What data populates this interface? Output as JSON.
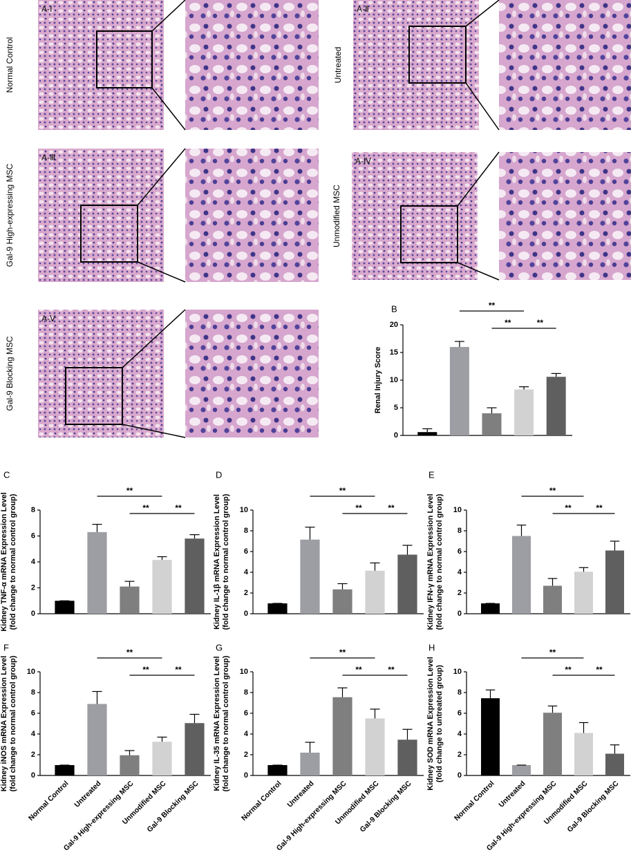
{
  "histology": [
    {
      "label": "A-Ⅰ",
      "group": "Normal Control"
    },
    {
      "label": "A-Ⅱ",
      "group": "Untreated"
    },
    {
      "label": "A-Ⅲ",
      "group": "Gal-9 High-expressing MSC"
    },
    {
      "label": "A-Ⅳ",
      "group": "Unmodified MSC"
    },
    {
      "label": "A-Ⅴ",
      "group": "Gal-9 Blocking MSC"
    }
  ],
  "chart_data": [
    {
      "type": "bar",
      "panel": "B",
      "y_label": [
        "Renal Injury Score"
      ],
      "values": [
        0.6,
        16,
        4,
        8.3,
        10.6
      ],
      "errors": [
        0.6,
        1.0,
        1.0,
        0.5,
        0.6
      ],
      "colors": [
        "#000000",
        "#9d9ea3",
        "#7f7f7f",
        "#d2d2d2",
        "#5f5f5f"
      ],
      "ylim": [
        0,
        20
      ],
      "yticks": [
        0,
        5,
        10,
        15,
        20
      ],
      "significance": [
        {
          "from": 1,
          "to": 3,
          "label": "**"
        },
        {
          "from": 2,
          "to": 3,
          "label": "**"
        },
        {
          "from": 3,
          "to": 4,
          "label": "**"
        }
      ]
    },
    {
      "type": "bar",
      "panel": "C",
      "y_label": [
        "Kidney TNF-α mRNA Expression Level",
        "(fold change to normal control group)"
      ],
      "values": [
        1,
        6.3,
        2.1,
        4.15,
        5.8
      ],
      "errors": [
        0,
        0.6,
        0.4,
        0.25,
        0.3
      ],
      "colors": [
        "#000000",
        "#9d9ea3",
        "#7f7f7f",
        "#d2d2d2",
        "#5f5f5f"
      ],
      "ylim": [
        0,
        8
      ],
      "yticks": [
        0,
        2,
        4,
        6,
        8
      ],
      "significance": [
        {
          "from": 1,
          "to": 3,
          "label": "**"
        },
        {
          "from": 2,
          "to": 3,
          "label": "**"
        },
        {
          "from": 3,
          "to": 4,
          "label": "**"
        }
      ]
    },
    {
      "type": "bar",
      "panel": "D",
      "y_label": [
        "Kidney IL-1β mRNA Expression Level",
        "(fold change to normal control group)"
      ],
      "values": [
        1,
        7.15,
        2.35,
        4.15,
        5.7
      ],
      "errors": [
        0,
        1.2,
        0.55,
        0.75,
        0.9
      ],
      "colors": [
        "#000000",
        "#9d9ea3",
        "#7f7f7f",
        "#d2d2d2",
        "#5f5f5f"
      ],
      "ylim": [
        0,
        10
      ],
      "yticks": [
        0,
        2,
        4,
        6,
        8,
        10
      ],
      "significance": [
        {
          "from": 1,
          "to": 3,
          "label": "**"
        },
        {
          "from": 2,
          "to": 3,
          "label": "**"
        },
        {
          "from": 3,
          "to": 4,
          "label": "**"
        }
      ]
    },
    {
      "type": "bar",
      "panel": "E",
      "y_label": [
        "Kidney IFN-γ mRNA Expression Level",
        "(fold change to normal control group)"
      ],
      "values": [
        1,
        7.5,
        2.7,
        4.05,
        6.1
      ],
      "errors": [
        0,
        1.05,
        0.7,
        0.4,
        0.9
      ],
      "colors": [
        "#000000",
        "#9d9ea3",
        "#7f7f7f",
        "#d2d2d2",
        "#5f5f5f"
      ],
      "ylim": [
        0,
        10
      ],
      "yticks": [
        0,
        2,
        4,
        6,
        8,
        10
      ],
      "significance": [
        {
          "from": 1,
          "to": 3,
          "label": "**"
        },
        {
          "from": 2,
          "to": 3,
          "label": "**"
        },
        {
          "from": 3,
          "to": 4,
          "label": "**"
        }
      ]
    },
    {
      "type": "bar",
      "panel": "F",
      "y_label": [
        "Kidney iNOS mRNA Expression Level",
        "(fold change to normal control group)"
      ],
      "categories": [
        "Normal Control",
        "Untreated",
        "Gal-9 High-expressing MSC",
        "Unmodified MSC",
        "Gal-9 Blocking MSC"
      ],
      "values": [
        1,
        6.9,
        1.95,
        3.25,
        5.05
      ],
      "errors": [
        0,
        1.2,
        0.45,
        0.45,
        0.85
      ],
      "colors": [
        "#000000",
        "#9d9ea3",
        "#7f7f7f",
        "#d2d2d2",
        "#5f5f5f"
      ],
      "ylim": [
        0,
        10
      ],
      "yticks": [
        0,
        2,
        4,
        6,
        8,
        10
      ],
      "significance": [
        {
          "from": 1,
          "to": 3,
          "label": "**"
        },
        {
          "from": 2,
          "to": 3,
          "label": "**"
        },
        {
          "from": 3,
          "to": 4,
          "label": "**"
        }
      ]
    },
    {
      "type": "bar",
      "panel": "G",
      "y_label": [
        "Kidney IL-35 mRNA Expression Level",
        "(fold change to normal control group)"
      ],
      "categories": [
        "Normal Control",
        "Untreated",
        "Gal-9 High-expressing MSC",
        "Unmodified MSC",
        "Gal-9 Blocking MSC"
      ],
      "values": [
        1,
        2.2,
        7.55,
        5.5,
        3.45
      ],
      "errors": [
        0,
        1.0,
        0.9,
        0.9,
        1.0
      ],
      "colors": [
        "#000000",
        "#9d9ea3",
        "#7f7f7f",
        "#d2d2d2",
        "#5f5f5f"
      ],
      "ylim": [
        0,
        10
      ],
      "yticks": [
        0,
        2,
        4,
        6,
        8,
        10
      ],
      "significance": [
        {
          "from": 1,
          "to": 3,
          "label": "**"
        },
        {
          "from": 2,
          "to": 3,
          "label": "**"
        },
        {
          "from": 3,
          "to": 4,
          "label": "**"
        }
      ]
    },
    {
      "type": "bar",
      "panel": "H",
      "y_label": [
        "Kidney SOD mRNA Expression Level",
        "(fold change to untreated group)"
      ],
      "categories": [
        "Normal Control",
        "Untreated",
        "Gal-9 High-expressing MSC",
        "Unmodified MSC",
        "Gal-9 Blocking MSC"
      ],
      "values": [
        7.45,
        1,
        6.05,
        4.1,
        2.1
      ],
      "errors": [
        0.8,
        0,
        0.65,
        1.0,
        0.85
      ],
      "colors": [
        "#000000",
        "#9d9ea3",
        "#7f7f7f",
        "#d2d2d2",
        "#5f5f5f"
      ],
      "ylim": [
        0,
        10
      ],
      "yticks": [
        0,
        2,
        4,
        6,
        8,
        10
      ],
      "significance": [
        {
          "from": 1,
          "to": 3,
          "label": "**"
        },
        {
          "from": 2,
          "to": 3,
          "label": "**"
        },
        {
          "from": 3,
          "to": 4,
          "label": "**"
        }
      ]
    }
  ]
}
